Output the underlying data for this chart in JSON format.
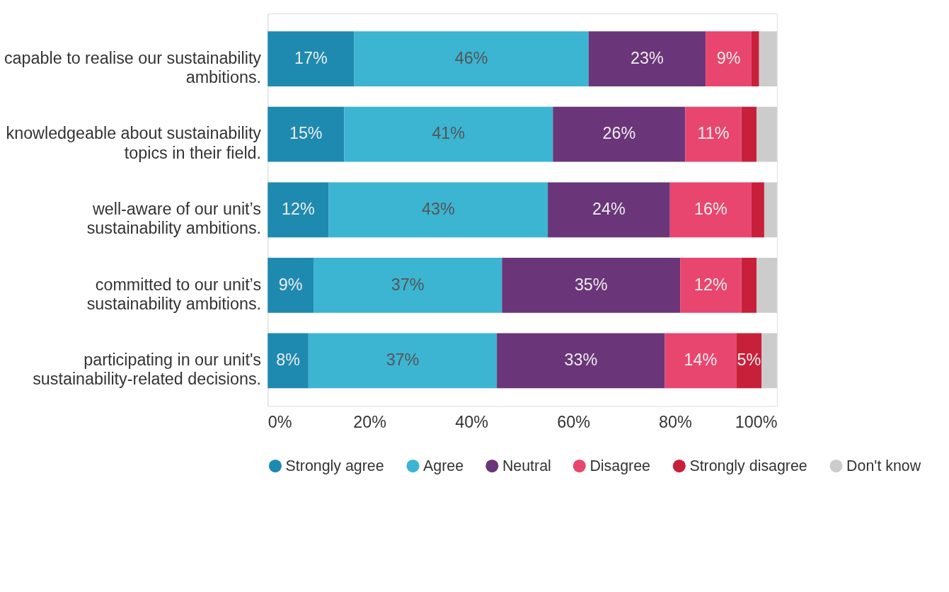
{
  "chart_data": {
    "type": "bar",
    "orientation": "horizontal",
    "stacked": true,
    "categories": [
      "capable to realise our sustainability ambitions.",
      "knowledgeable about sustainability topics in their field.",
      "well-aware of our unit’s sustainability ambitions.",
      "committed to our unit’s sustainability ambitions.",
      "participating in our unit's sustainability-related decisions."
    ],
    "series": [
      {
        "name": "Strongly agree",
        "color": "#1f8ab0",
        "values": [
          17,
          15,
          12,
          9,
          8
        ],
        "value_labels": [
          "17%",
          "15%",
          "12%",
          "9%",
          "8%"
        ]
      },
      {
        "name": "Agree",
        "color": "#3bb5d1",
        "values": [
          46,
          41,
          43,
          37,
          37
        ],
        "value_labels": [
          "46%",
          "41%",
          "43%",
          "37%",
          "37%"
        ]
      },
      {
        "name": "Neutral",
        "color": "#6b3679",
        "values": [
          23,
          26,
          24,
          35,
          33
        ],
        "value_labels": [
          "23%",
          "26%",
          "24%",
          "35%",
          "33%"
        ]
      },
      {
        "name": "Disagree",
        "color": "#e8466f",
        "values": [
          9,
          11,
          16,
          12,
          14
        ],
        "value_labels": [
          "9%",
          "11%",
          "16%",
          "12%",
          "14%"
        ]
      },
      {
        "name": "Strongly disagree",
        "color": "#c8203a",
        "values": [
          1.5,
          3,
          2.5,
          3,
          5
        ],
        "value_labels": [
          null,
          null,
          null,
          null,
          "5%"
        ]
      },
      {
        "name": "Don't know",
        "color": "#cccccc",
        "values": [
          3.5,
          4,
          2.5,
          4,
          3
        ],
        "value_labels": [
          null,
          null,
          null,
          null,
          null
        ]
      }
    ],
    "xlim": [
      0,
      100
    ],
    "xticks": [
      {
        "value": 0,
        "label": "0%"
      },
      {
        "value": 20,
        "label": "20%"
      },
      {
        "value": 40,
        "label": "40%"
      },
      {
        "value": 60,
        "label": "60%"
      },
      {
        "value": 80,
        "label": "80%"
      },
      {
        "value": 100,
        "label": "100%"
      }
    ],
    "legend": "bottom",
    "grid": false
  }
}
